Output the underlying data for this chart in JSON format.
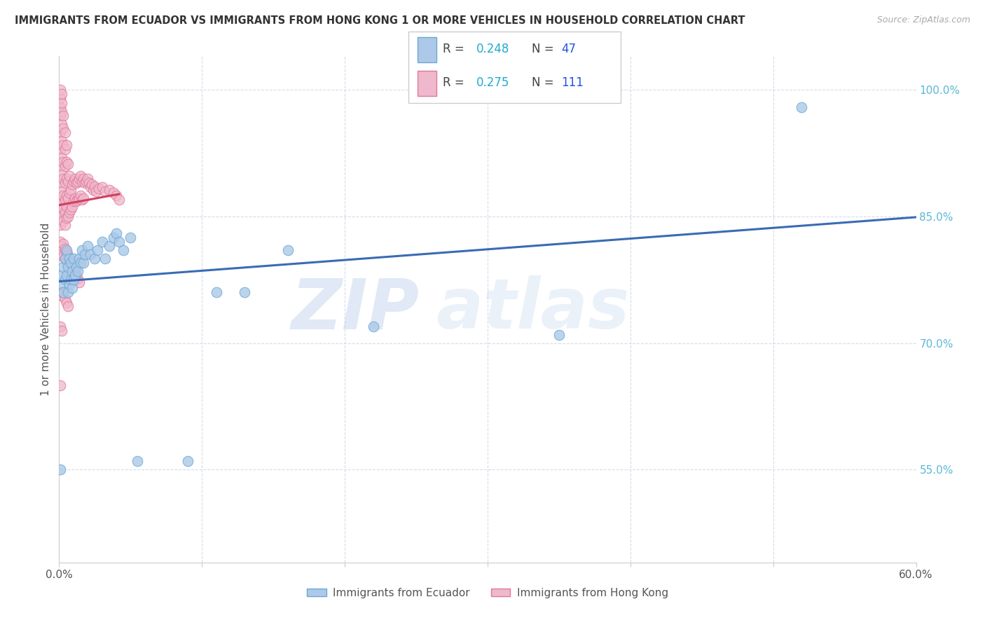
{
  "title": "IMMIGRANTS FROM ECUADOR VS IMMIGRANTS FROM HONG KONG 1 OR MORE VEHICLES IN HOUSEHOLD CORRELATION CHART",
  "source": "Source: ZipAtlas.com",
  "ylabel": "1 or more Vehicles in Household",
  "xmin": 0.0,
  "xmax": 0.6,
  "ymin": 0.44,
  "ymax": 1.04,
  "ecuador_color": "#adc8e8",
  "ecuador_edge": "#6aaad4",
  "hongkong_color": "#f0b8cc",
  "hongkong_edge": "#e07898",
  "ecuador_R": 0.248,
  "ecuador_N": 47,
  "hongkong_R": 0.275,
  "hongkong_N": 111,
  "ecuador_line_color": "#3a6bb5",
  "hongkong_line_color": "#d04060",
  "watermark_zip": "ZIP",
  "watermark_atlas": "atlas",
  "tick_color": "#5bb8d4",
  "legend_label_ecuador": "Immigrants from Ecuador",
  "legend_label_hongkong": "Immigrants from Hong Kong",
  "ecuador_scatter": [
    [
      0.001,
      0.77
    ],
    [
      0.002,
      0.78
    ],
    [
      0.003,
      0.76
    ],
    [
      0.003,
      0.79
    ],
    [
      0.004,
      0.775
    ],
    [
      0.004,
      0.8
    ],
    [
      0.005,
      0.78
    ],
    [
      0.005,
      0.81
    ],
    [
      0.006,
      0.76
    ],
    [
      0.006,
      0.79
    ],
    [
      0.007,
      0.77
    ],
    [
      0.007,
      0.8
    ],
    [
      0.008,
      0.775
    ],
    [
      0.008,
      0.795
    ],
    [
      0.009,
      0.765
    ],
    [
      0.009,
      0.785
    ],
    [
      0.01,
      0.775
    ],
    [
      0.01,
      0.8
    ],
    [
      0.011,
      0.78
    ],
    [
      0.012,
      0.79
    ],
    [
      0.013,
      0.785
    ],
    [
      0.014,
      0.8
    ],
    [
      0.015,
      0.795
    ],
    [
      0.016,
      0.81
    ],
    [
      0.017,
      0.795
    ],
    [
      0.018,
      0.805
    ],
    [
      0.02,
      0.815
    ],
    [
      0.022,
      0.805
    ],
    [
      0.025,
      0.8
    ],
    [
      0.027,
      0.81
    ],
    [
      0.03,
      0.82
    ],
    [
      0.032,
      0.8
    ],
    [
      0.035,
      0.815
    ],
    [
      0.038,
      0.825
    ],
    [
      0.04,
      0.83
    ],
    [
      0.042,
      0.82
    ],
    [
      0.045,
      0.81
    ],
    [
      0.05,
      0.825
    ],
    [
      0.055,
      0.56
    ],
    [
      0.09,
      0.56
    ],
    [
      0.11,
      0.76
    ],
    [
      0.13,
      0.76
    ],
    [
      0.16,
      0.81
    ],
    [
      0.22,
      0.72
    ],
    [
      0.35,
      0.71
    ],
    [
      0.52,
      0.98
    ],
    [
      0.001,
      0.55
    ]
  ],
  "hongkong_scatter": [
    [
      0.001,
      0.87
    ],
    [
      0.001,
      0.89
    ],
    [
      0.001,
      0.91
    ],
    [
      0.001,
      0.93
    ],
    [
      0.001,
      0.95
    ],
    [
      0.001,
      0.97
    ],
    [
      0.001,
      0.98
    ],
    [
      0.001,
      0.99
    ],
    [
      0.001,
      1.0
    ],
    [
      0.001,
      0.855
    ],
    [
      0.001,
      0.84
    ],
    [
      0.002,
      0.88
    ],
    [
      0.002,
      0.9
    ],
    [
      0.002,
      0.92
    ],
    [
      0.002,
      0.94
    ],
    [
      0.002,
      0.96
    ],
    [
      0.002,
      0.975
    ],
    [
      0.002,
      0.985
    ],
    [
      0.002,
      0.995
    ],
    [
      0.002,
      0.85
    ],
    [
      0.002,
      0.865
    ],
    [
      0.003,
      0.875
    ],
    [
      0.003,
      0.895
    ],
    [
      0.003,
      0.915
    ],
    [
      0.003,
      0.935
    ],
    [
      0.003,
      0.955
    ],
    [
      0.003,
      0.97
    ],
    [
      0.003,
      0.845
    ],
    [
      0.003,
      0.86
    ],
    [
      0.004,
      0.87
    ],
    [
      0.004,
      0.89
    ],
    [
      0.004,
      0.91
    ],
    [
      0.004,
      0.93
    ],
    [
      0.004,
      0.95
    ],
    [
      0.004,
      0.84
    ],
    [
      0.004,
      0.855
    ],
    [
      0.005,
      0.875
    ],
    [
      0.005,
      0.895
    ],
    [
      0.005,
      0.915
    ],
    [
      0.005,
      0.935
    ],
    [
      0.005,
      0.848
    ],
    [
      0.005,
      0.862
    ],
    [
      0.006,
      0.872
    ],
    [
      0.006,
      0.892
    ],
    [
      0.006,
      0.912
    ],
    [
      0.006,
      0.85
    ],
    [
      0.007,
      0.878
    ],
    [
      0.007,
      0.898
    ],
    [
      0.007,
      0.855
    ],
    [
      0.008,
      0.882
    ],
    [
      0.008,
      0.858
    ],
    [
      0.009,
      0.888
    ],
    [
      0.009,
      0.862
    ],
    [
      0.01,
      0.892
    ],
    [
      0.01,
      0.868
    ],
    [
      0.011,
      0.895
    ],
    [
      0.011,
      0.872
    ],
    [
      0.012,
      0.89
    ],
    [
      0.012,
      0.868
    ],
    [
      0.013,
      0.892
    ],
    [
      0.013,
      0.87
    ],
    [
      0.014,
      0.895
    ],
    [
      0.014,
      0.872
    ],
    [
      0.015,
      0.898
    ],
    [
      0.015,
      0.875
    ],
    [
      0.016,
      0.892
    ],
    [
      0.016,
      0.87
    ],
    [
      0.017,
      0.895
    ],
    [
      0.017,
      0.872
    ],
    [
      0.018,
      0.89
    ],
    [
      0.019,
      0.892
    ],
    [
      0.02,
      0.895
    ],
    [
      0.021,
      0.89
    ],
    [
      0.022,
      0.885
    ],
    [
      0.023,
      0.888
    ],
    [
      0.024,
      0.882
    ],
    [
      0.025,
      0.886
    ],
    [
      0.026,
      0.88
    ],
    [
      0.028,
      0.883
    ],
    [
      0.03,
      0.885
    ],
    [
      0.032,
      0.88
    ],
    [
      0.035,
      0.882
    ],
    [
      0.038,
      0.878
    ],
    [
      0.04,
      0.875
    ],
    [
      0.042,
      0.87
    ],
    [
      0.001,
      0.82
    ],
    [
      0.001,
      0.808
    ],
    [
      0.002,
      0.815
    ],
    [
      0.002,
      0.805
    ],
    [
      0.003,
      0.818
    ],
    [
      0.003,
      0.803
    ],
    [
      0.004,
      0.812
    ],
    [
      0.004,
      0.8
    ],
    [
      0.005,
      0.808
    ],
    [
      0.005,
      0.796
    ],
    [
      0.006,
      0.804
    ],
    [
      0.006,
      0.792
    ],
    [
      0.007,
      0.8
    ],
    [
      0.008,
      0.796
    ],
    [
      0.009,
      0.792
    ],
    [
      0.01,
      0.788
    ],
    [
      0.011,
      0.784
    ],
    [
      0.012,
      0.78
    ],
    [
      0.013,
      0.776
    ],
    [
      0.014,
      0.772
    ],
    [
      0.001,
      0.76
    ],
    [
      0.002,
      0.756
    ],
    [
      0.003,
      0.76
    ],
    [
      0.004,
      0.752
    ],
    [
      0.005,
      0.748
    ],
    [
      0.006,
      0.744
    ],
    [
      0.001,
      0.72
    ],
    [
      0.002,
      0.715
    ],
    [
      0.001,
      0.65
    ]
  ]
}
